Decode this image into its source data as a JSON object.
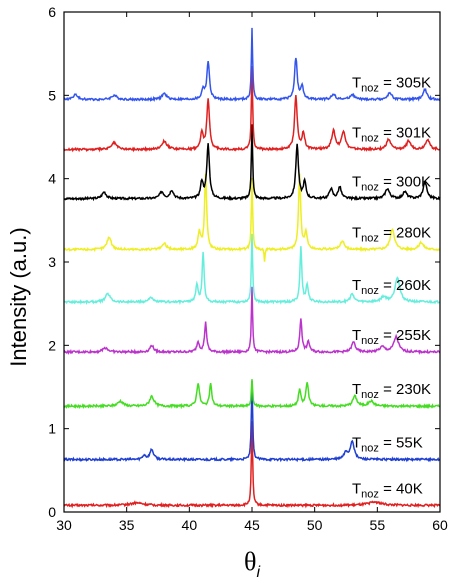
{
  "chart_data": {
    "type": "line",
    "xlabel": "θ",
    "xlabel_sub": "i",
    "ylabel": "Intensity (a.u.)",
    "xlim": [
      30,
      60
    ],
    "ylim": [
      0,
      6
    ],
    "x_ticks": [
      30,
      35,
      40,
      45,
      50,
      55,
      60
    ],
    "y_ticks": [
      0,
      1,
      2,
      3,
      4,
      5,
      6
    ],
    "grid": false,
    "legend": "inline labels on right",
    "series": [
      {
        "label_main": "T",
        "label_sub": "noz",
        "label_value": " = 40K",
        "color": "#e02020",
        "baseline": 0.08,
        "peaks": [
          [
            45.0,
            1.0,
            0.12
          ],
          [
            35.8,
            0.03,
            1.2
          ],
          [
            54.8,
            0.04,
            1.2
          ]
        ]
      },
      {
        "label_main": "T",
        "label_sub": "noz",
        "label_value": " = 55K",
        "color": "#1f3fd1",
        "baseline": 0.63,
        "peaks": [
          [
            45.0,
            0.95,
            0.12
          ],
          [
            37.0,
            0.12,
            0.35
          ],
          [
            36.4,
            0.05,
            0.3
          ],
          [
            53.0,
            0.22,
            0.35
          ],
          [
            52.5,
            0.08,
            0.4
          ]
        ]
      },
      {
        "label_main": "T",
        "label_sub": "noz",
        "label_value": " = 230K",
        "color": "#44dd22",
        "baseline": 1.27,
        "peaks": [
          [
            45.0,
            0.32,
            0.12
          ],
          [
            40.7,
            0.28,
            0.25
          ],
          [
            41.7,
            0.26,
            0.22
          ],
          [
            48.8,
            0.2,
            0.22
          ],
          [
            49.4,
            0.28,
            0.25
          ],
          [
            37.0,
            0.12,
            0.4
          ],
          [
            34.5,
            0.06,
            0.5
          ],
          [
            53.2,
            0.12,
            0.4
          ],
          [
            54.5,
            0.06,
            0.5
          ]
        ]
      },
      {
        "label_main": "T",
        "label_sub": "noz",
        "label_value": " = 255K",
        "color": "#bb33cc",
        "baseline": 1.92,
        "peaks": [
          [
            45.0,
            0.77,
            0.12
          ],
          [
            41.3,
            0.35,
            0.2
          ],
          [
            40.7,
            0.12,
            0.25
          ],
          [
            48.9,
            0.4,
            0.2
          ],
          [
            49.5,
            0.12,
            0.25
          ],
          [
            37.0,
            0.08,
            0.35
          ],
          [
            33.3,
            0.05,
            0.5
          ],
          [
            53.1,
            0.12,
            0.35
          ],
          [
            56.5,
            0.18,
            0.45
          ],
          [
            55.4,
            0.06,
            0.5
          ]
        ]
      },
      {
        "label_main": "T",
        "label_sub": "noz",
        "label_value": " = 260K",
        "color": "#66eedd",
        "baseline": 2.52,
        "peaks": [
          [
            45.0,
            0.82,
            0.12
          ],
          [
            41.1,
            0.6,
            0.18
          ],
          [
            40.6,
            0.2,
            0.22
          ],
          [
            48.9,
            0.65,
            0.18
          ],
          [
            49.4,
            0.2,
            0.22
          ],
          [
            36.9,
            0.06,
            0.35
          ],
          [
            33.5,
            0.1,
            0.45
          ],
          [
            53.0,
            0.1,
            0.35
          ],
          [
            56.6,
            0.3,
            0.45
          ],
          [
            55.5,
            0.06,
            0.5
          ]
        ]
      },
      {
        "label_main": "T",
        "label_sub": "noz",
        "label_value": " = 280K",
        "color": "#eeee22",
        "baseline": 3.15,
        "peaks": [
          [
            45.0,
            0.85,
            0.12
          ],
          [
            41.3,
            0.9,
            0.2
          ],
          [
            40.8,
            0.2,
            0.25
          ],
          [
            48.8,
            0.9,
            0.2
          ],
          [
            49.3,
            0.2,
            0.25
          ],
          [
            33.6,
            0.15,
            0.4
          ],
          [
            38.0,
            0.07,
            0.4
          ],
          [
            52.2,
            0.1,
            0.4
          ],
          [
            56.2,
            0.25,
            0.4
          ],
          [
            58.5,
            0.08,
            0.45
          ],
          [
            46.0,
            -0.15,
            0.08
          ]
        ]
      },
      {
        "label_main": "T",
        "label_sub": "noz",
        "label_value": " = 300K",
        "color": "#000000",
        "baseline": 3.76,
        "peaks": [
          [
            45.0,
            0.9,
            0.12
          ],
          [
            41.5,
            0.65,
            0.25
          ],
          [
            41.0,
            0.2,
            0.25
          ],
          [
            48.6,
            0.65,
            0.25
          ],
          [
            49.2,
            0.2,
            0.25
          ],
          [
            33.2,
            0.08,
            0.4
          ],
          [
            37.8,
            0.08,
            0.4
          ],
          [
            38.6,
            0.1,
            0.35
          ],
          [
            51.3,
            0.12,
            0.3
          ],
          [
            52.0,
            0.14,
            0.3
          ],
          [
            55.8,
            0.12,
            0.4
          ],
          [
            57.2,
            0.08,
            0.4
          ],
          [
            58.8,
            0.2,
            0.35
          ]
        ]
      },
      {
        "label_main": "T",
        "label_sub": "noz",
        "label_value": " = 301K",
        "color": "#e02020",
        "baseline": 4.35,
        "peaks": [
          [
            45.0,
            1.0,
            0.12
          ],
          [
            41.5,
            0.6,
            0.25
          ],
          [
            41.0,
            0.2,
            0.25
          ],
          [
            48.5,
            0.65,
            0.25
          ],
          [
            49.1,
            0.2,
            0.25
          ],
          [
            34.0,
            0.08,
            0.5
          ],
          [
            38.0,
            0.1,
            0.5
          ],
          [
            51.5,
            0.22,
            0.35
          ],
          [
            52.3,
            0.22,
            0.35
          ],
          [
            55.9,
            0.12,
            0.4
          ],
          [
            57.5,
            0.1,
            0.4
          ],
          [
            59.0,
            0.12,
            0.4
          ]
        ]
      },
      {
        "label_main": "T",
        "label_sub": "noz",
        "label_value": " = 305K",
        "color": "#3355ee",
        "baseline": 4.95,
        "peaks": [
          [
            45.0,
            0.85,
            0.12
          ],
          [
            41.5,
            0.45,
            0.25
          ],
          [
            41.1,
            0.12,
            0.25
          ],
          [
            48.5,
            0.5,
            0.25
          ],
          [
            49.0,
            0.15,
            0.25
          ],
          [
            30.9,
            0.06,
            0.4
          ],
          [
            34.0,
            0.05,
            0.5
          ],
          [
            38.0,
            0.07,
            0.45
          ],
          [
            51.5,
            0.06,
            0.4
          ],
          [
            53.0,
            0.06,
            0.4
          ],
          [
            56.0,
            0.08,
            0.4
          ],
          [
            58.8,
            0.12,
            0.35
          ]
        ]
      }
    ]
  }
}
